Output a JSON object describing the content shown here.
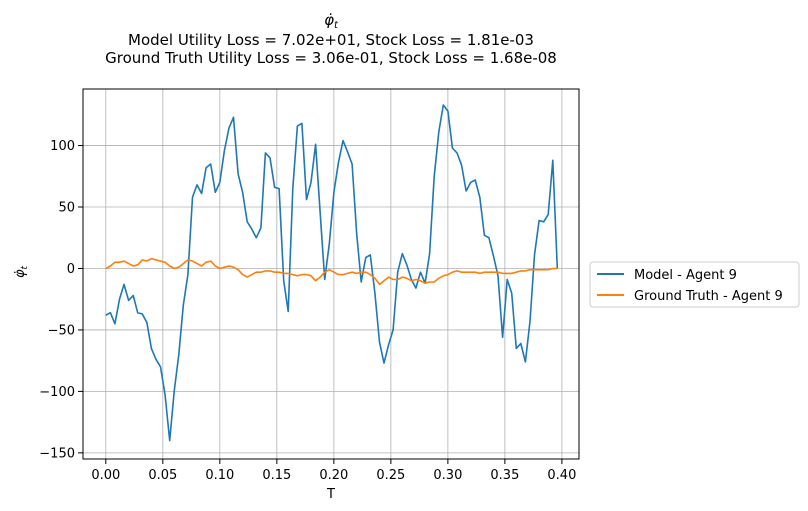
{
  "chart_data": {
    "type": "line",
    "title_symbol": "φ̇",
    "title_subscript": "t",
    "subtitle_lines": [
      "Model Utility Loss = 7.02e+01, Stock Loss = 1.81e-03",
      "Ground Truth Utility Loss = 3.06e-01, Stock Loss = 1.68e-08"
    ],
    "xlabel": "T",
    "ylabel_symbol": "φ̇",
    "ylabel_subscript": "t",
    "xlim": [
      -0.02,
      0.415
    ],
    "ylim": [
      -155,
      146
    ],
    "xticks": [
      0.0,
      0.05,
      0.1,
      0.15,
      0.2,
      0.25,
      0.3,
      0.35,
      0.4
    ],
    "xtick_labels": [
      "0.00",
      "0.05",
      "0.10",
      "0.15",
      "0.20",
      "0.25",
      "0.30",
      "0.35",
      "0.40"
    ],
    "yticks": [
      -150,
      -100,
      -50,
      0,
      50,
      100
    ],
    "ytick_labels": [
      "−150",
      "−100",
      "−50",
      "0",
      "50",
      "100"
    ],
    "grid": true,
    "legend_placement": "outside-right",
    "series": [
      {
        "name": "Model - Agent 9",
        "color": "#1f77b4",
        "points": [
          [
            0.0,
            -38
          ],
          [
            0.004,
            -36
          ],
          [
            0.008,
            -45
          ],
          [
            0.012,
            -25
          ],
          [
            0.016,
            -13
          ],
          [
            0.02,
            -26
          ],
          [
            0.024,
            -22
          ],
          [
            0.028,
            -36
          ],
          [
            0.032,
            -37
          ],
          [
            0.036,
            -44
          ],
          [
            0.04,
            -65
          ],
          [
            0.044,
            -74
          ],
          [
            0.048,
            -80
          ],
          [
            0.052,
            -103
          ],
          [
            0.056,
            -140
          ],
          [
            0.06,
            -100
          ],
          [
            0.064,
            -70
          ],
          [
            0.068,
            -30
          ],
          [
            0.072,
            -5
          ],
          [
            0.076,
            58
          ],
          [
            0.08,
            68
          ],
          [
            0.084,
            61
          ],
          [
            0.088,
            82
          ],
          [
            0.092,
            85
          ],
          [
            0.096,
            62
          ],
          [
            0.1,
            70
          ],
          [
            0.104,
            96
          ],
          [
            0.108,
            114
          ],
          [
            0.112,
            123
          ],
          [
            0.116,
            77
          ],
          [
            0.12,
            62
          ],
          [
            0.124,
            38
          ],
          [
            0.128,
            32
          ],
          [
            0.132,
            25
          ],
          [
            0.136,
            33
          ],
          [
            0.14,
            94
          ],
          [
            0.144,
            90
          ],
          [
            0.148,
            66
          ],
          [
            0.152,
            65
          ],
          [
            0.156,
            -10
          ],
          [
            0.16,
            -35
          ],
          [
            0.164,
            65
          ],
          [
            0.168,
            116
          ],
          [
            0.172,
            118
          ],
          [
            0.176,
            56
          ],
          [
            0.18,
            70
          ],
          [
            0.184,
            101
          ],
          [
            0.188,
            45
          ],
          [
            0.192,
            -9
          ],
          [
            0.196,
            20
          ],
          [
            0.2,
            62
          ],
          [
            0.204,
            86
          ],
          [
            0.208,
            104
          ],
          [
            0.212,
            95
          ],
          [
            0.216,
            85
          ],
          [
            0.22,
            28
          ],
          [
            0.224,
            -11
          ],
          [
            0.228,
            9
          ],
          [
            0.232,
            11
          ],
          [
            0.236,
            -20
          ],
          [
            0.24,
            -60
          ],
          [
            0.244,
            -77
          ],
          [
            0.248,
            -62
          ],
          [
            0.252,
            -50
          ],
          [
            0.256,
            -3
          ],
          [
            0.26,
            12
          ],
          [
            0.264,
            3
          ],
          [
            0.268,
            -9
          ],
          [
            0.272,
            -16
          ],
          [
            0.276,
            -3
          ],
          [
            0.28,
            -12
          ],
          [
            0.284,
            12
          ],
          [
            0.288,
            75
          ],
          [
            0.292,
            111
          ],
          [
            0.296,
            133
          ],
          [
            0.3,
            128
          ],
          [
            0.304,
            98
          ],
          [
            0.308,
            94
          ],
          [
            0.312,
            84
          ],
          [
            0.316,
            63
          ],
          [
            0.32,
            70
          ],
          [
            0.324,
            72
          ],
          [
            0.328,
            58
          ],
          [
            0.332,
            27
          ],
          [
            0.336,
            25
          ],
          [
            0.34,
            10
          ],
          [
            0.344,
            -6
          ],
          [
            0.348,
            -56
          ],
          [
            0.352,
            -9
          ],
          [
            0.356,
            -20
          ],
          [
            0.36,
            -65
          ],
          [
            0.364,
            -61
          ],
          [
            0.368,
            -76
          ],
          [
            0.372,
            -43
          ],
          [
            0.376,
            11
          ],
          [
            0.38,
            39
          ],
          [
            0.384,
            38
          ],
          [
            0.388,
            44
          ],
          [
            0.392,
            88
          ],
          [
            0.396,
            0
          ]
        ]
      },
      {
        "name": "Ground Truth - Agent 9",
        "color": "#ff7f0e",
        "points": [
          [
            0.0,
            0
          ],
          [
            0.004,
            2
          ],
          [
            0.008,
            5
          ],
          [
            0.012,
            5
          ],
          [
            0.016,
            6
          ],
          [
            0.02,
            4
          ],
          [
            0.024,
            2
          ],
          [
            0.028,
            3
          ],
          [
            0.032,
            7
          ],
          [
            0.036,
            6
          ],
          [
            0.04,
            8
          ],
          [
            0.044,
            7
          ],
          [
            0.048,
            6
          ],
          [
            0.052,
            5
          ],
          [
            0.056,
            2
          ],
          [
            0.06,
            0
          ],
          [
            0.064,
            1
          ],
          [
            0.068,
            4
          ],
          [
            0.072,
            7
          ],
          [
            0.076,
            6
          ],
          [
            0.08,
            4
          ],
          [
            0.084,
            2
          ],
          [
            0.088,
            5
          ],
          [
            0.092,
            6
          ],
          [
            0.096,
            2
          ],
          [
            0.1,
            0
          ],
          [
            0.104,
            1
          ],
          [
            0.108,
            2
          ],
          [
            0.112,
            1
          ],
          [
            0.116,
            -1
          ],
          [
            0.12,
            -5
          ],
          [
            0.124,
            -7
          ],
          [
            0.128,
            -5
          ],
          [
            0.132,
            -3
          ],
          [
            0.136,
            -3
          ],
          [
            0.14,
            -2
          ],
          [
            0.144,
            -2
          ],
          [
            0.148,
            -3
          ],
          [
            0.152,
            -3
          ],
          [
            0.156,
            -4
          ],
          [
            0.16,
            -4
          ],
          [
            0.164,
            -5
          ],
          [
            0.168,
            -6
          ],
          [
            0.172,
            -5
          ],
          [
            0.176,
            -5
          ],
          [
            0.18,
            -6
          ],
          [
            0.184,
            -10
          ],
          [
            0.188,
            -7
          ],
          [
            0.192,
            -3
          ],
          [
            0.196,
            -1
          ],
          [
            0.2,
            -3
          ],
          [
            0.204,
            -5
          ],
          [
            0.208,
            -5
          ],
          [
            0.212,
            -4
          ],
          [
            0.216,
            -3
          ],
          [
            0.22,
            -4
          ],
          [
            0.224,
            -3
          ],
          [
            0.228,
            -3
          ],
          [
            0.232,
            -5
          ],
          [
            0.236,
            -8
          ],
          [
            0.24,
            -13
          ],
          [
            0.244,
            -10
          ],
          [
            0.248,
            -7
          ],
          [
            0.252,
            -9
          ],
          [
            0.256,
            -9
          ],
          [
            0.26,
            -7
          ],
          [
            0.264,
            -8
          ],
          [
            0.268,
            -10
          ],
          [
            0.272,
            -9
          ],
          [
            0.276,
            -10
          ],
          [
            0.28,
            -12
          ],
          [
            0.284,
            -11
          ],
          [
            0.288,
            -11
          ],
          [
            0.292,
            -8
          ],
          [
            0.296,
            -6
          ],
          [
            0.3,
            -5
          ],
          [
            0.304,
            -3
          ],
          [
            0.308,
            -2
          ],
          [
            0.312,
            -3
          ],
          [
            0.316,
            -3
          ],
          [
            0.32,
            -3
          ],
          [
            0.324,
            -3
          ],
          [
            0.328,
            -4
          ],
          [
            0.332,
            -3
          ],
          [
            0.336,
            -3
          ],
          [
            0.34,
            -3
          ],
          [
            0.344,
            -3
          ],
          [
            0.348,
            -4
          ],
          [
            0.352,
            -4
          ],
          [
            0.356,
            -4
          ],
          [
            0.36,
            -3
          ],
          [
            0.364,
            -2
          ],
          [
            0.368,
            -2
          ],
          [
            0.372,
            -1
          ],
          [
            0.376,
            -1
          ],
          [
            0.38,
            -1
          ],
          [
            0.384,
            -1
          ],
          [
            0.388,
            -1
          ],
          [
            0.392,
            0
          ],
          [
            0.396,
            0
          ]
        ]
      }
    ]
  }
}
